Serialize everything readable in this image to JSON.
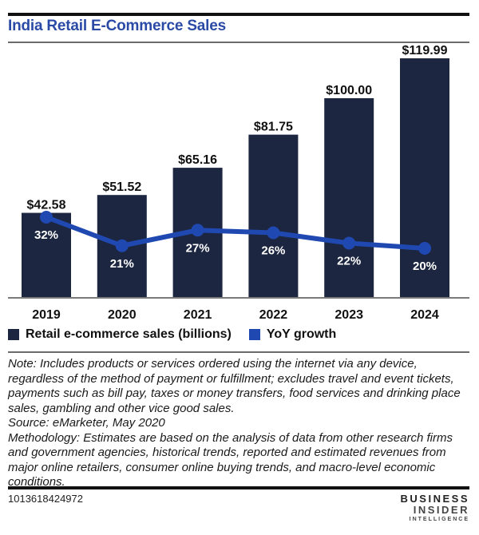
{
  "header": {
    "title": "India Retail E-Commerce Sales"
  },
  "colors": {
    "title": "#2a4aa6",
    "bar": "#1c2640",
    "line": "#1f48b0"
  },
  "chart_data": {
    "type": "bar+line",
    "title": "India Retail E-Commerce Sales",
    "xlabel": "",
    "ylabel": "",
    "grid": false,
    "categories": [
      "2019",
      "2020",
      "2021",
      "2022",
      "2023",
      "2024"
    ],
    "series": [
      {
        "name": "Retail e-commerce sales (billions)",
        "type": "bar",
        "values": [
          42.58,
          51.52,
          65.16,
          81.75,
          100.0,
          119.99
        ],
        "labels": [
          "$42.58",
          "$51.52",
          "$65.16",
          "$81.75",
          "$100.00",
          "$119.99"
        ]
      },
      {
        "name": "YoY growth",
        "type": "line",
        "values": [
          32,
          21,
          27,
          26,
          22,
          20
        ],
        "labels": [
          "32%",
          "21%",
          "27%",
          "26%",
          "22%",
          "20%"
        ]
      }
    ],
    "legend_position": "bottom-left"
  },
  "legend": [
    {
      "label": "Retail e-commerce sales (billions)",
      "color": "#1c2640"
    },
    {
      "label": "YoY growth",
      "color": "#1f48b0"
    }
  ],
  "notes": {
    "note": "Note: Includes products or services ordered using the internet via any device, regardless of the method of payment or fulfillment; excludes travel and event tickets, payments such as bill pay, taxes or money transfers, food services and drinking place sales, gambling and other vice good sales.",
    "source": "Source: eMarketer, May 2020",
    "methodology": "Methodology: Estimates are based on the analysis of data from other research firms and government agencies, historical trends, reported and estimated revenues from major online retailers, consumer online buying trends, and macro-level economic conditions."
  },
  "footer": {
    "chart_id": "1013618424972",
    "brand_line1": "BUSINESS",
    "brand_line2": "INSIDER",
    "brand_line3": "INTELLIGENCE"
  }
}
